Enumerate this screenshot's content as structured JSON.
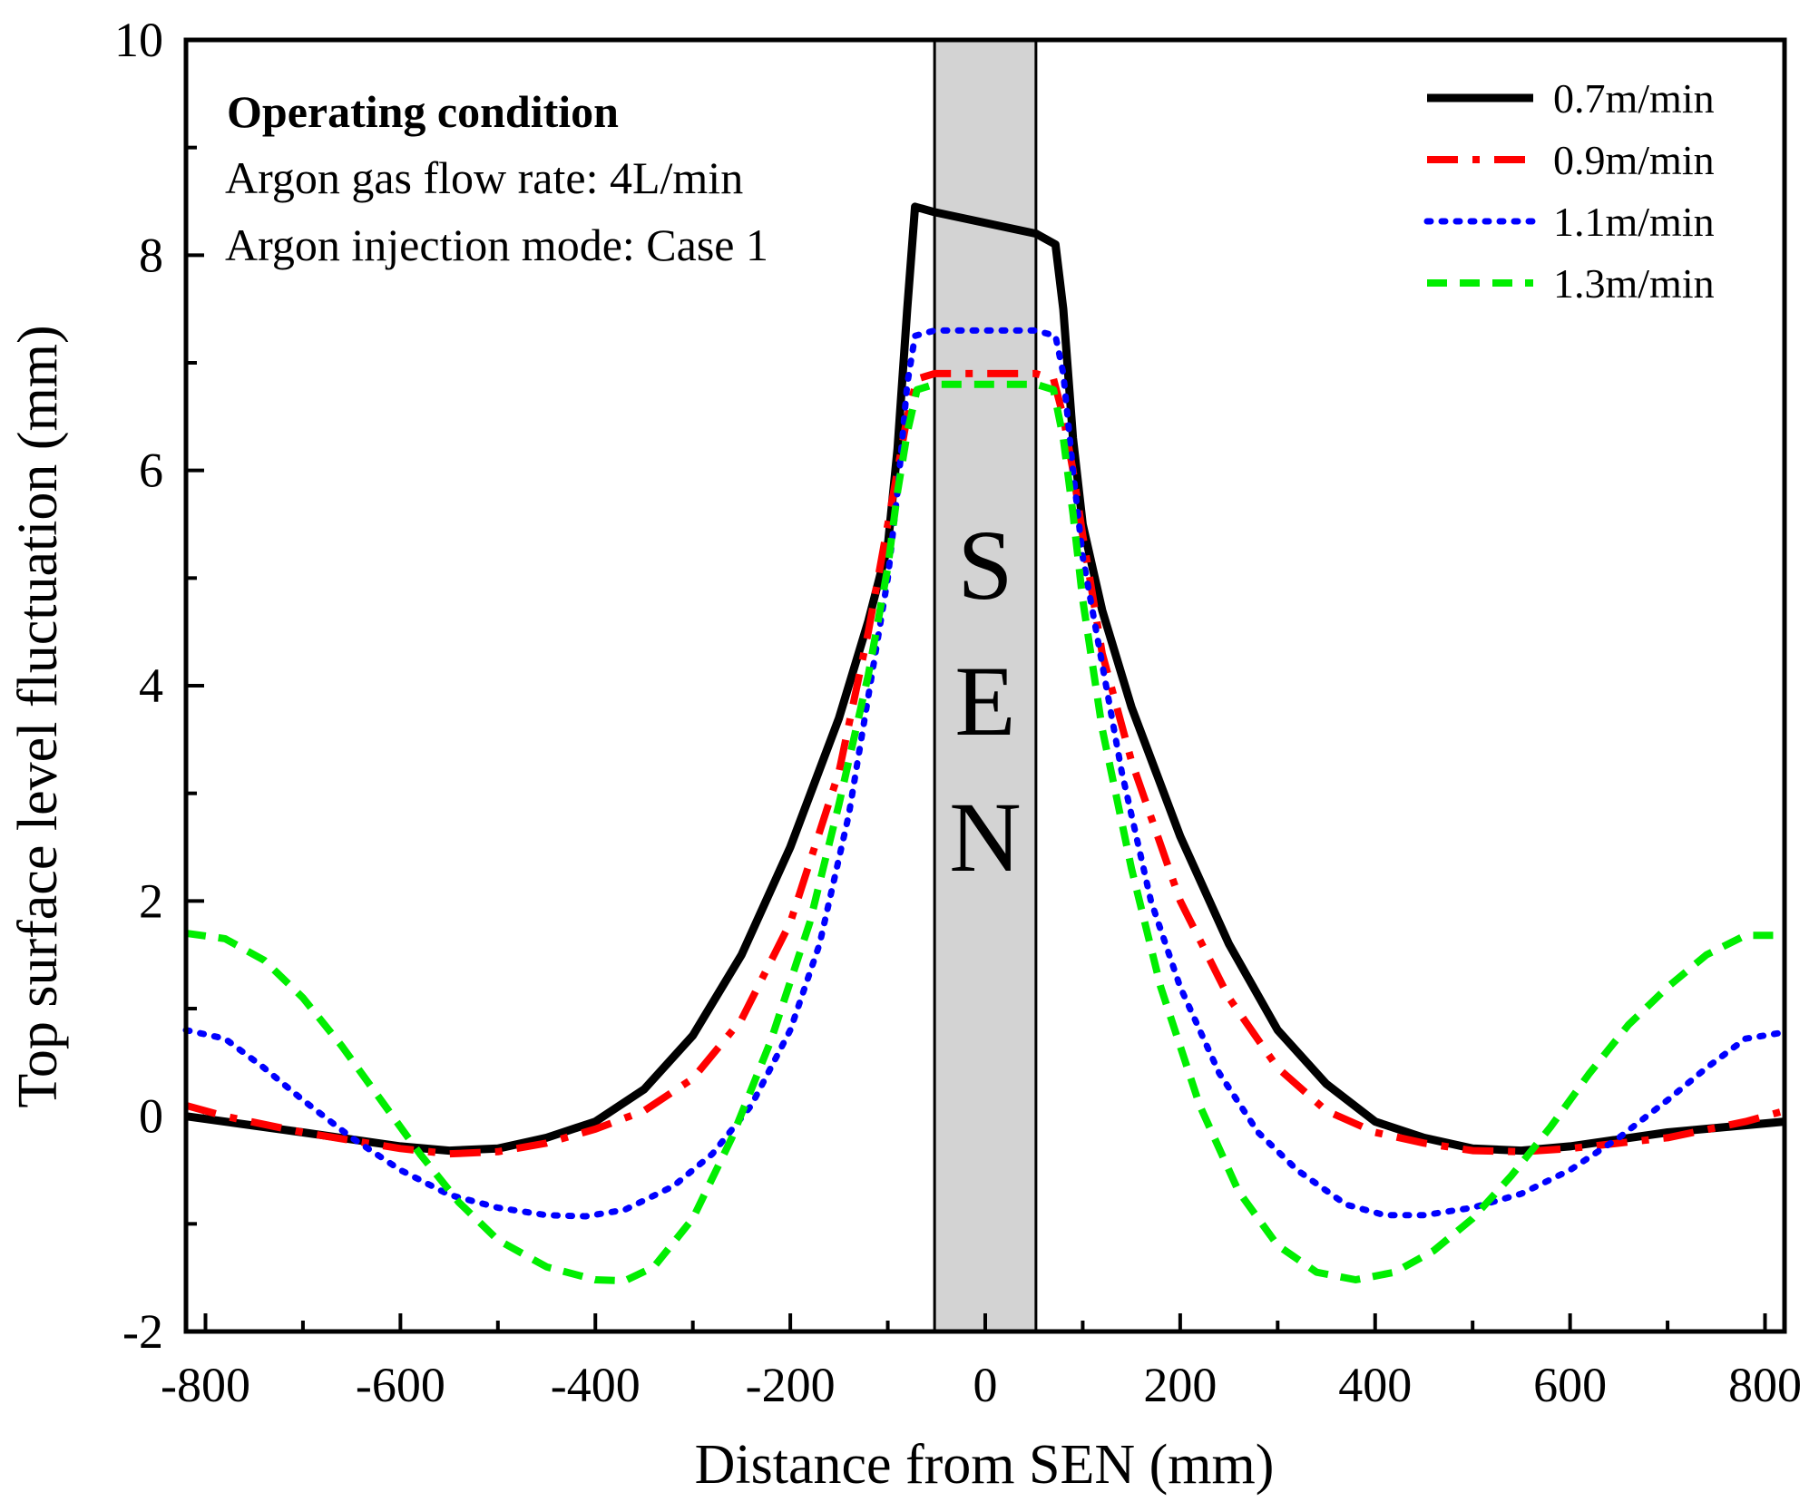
{
  "chart_data": {
    "type": "line",
    "xlabel": "Distance from SEN (mm)",
    "ylabel": "Top surface level fluctuation (mm)",
    "xlim": [
      -820,
      820
    ],
    "ylim": [
      -2,
      10
    ],
    "xticks": [
      -800,
      -600,
      -400,
      -200,
      0,
      200,
      400,
      600,
      800
    ],
    "yticks": [
      -2,
      0,
      2,
      4,
      6,
      8,
      10
    ],
    "sen_region": {
      "x": [
        -52,
        52
      ],
      "letters": [
        "S",
        "E",
        "N"
      ],
      "fill": "#d3d3d3"
    },
    "annotation": {
      "title": "Operating condition",
      "lines": [
        "Argon gas flow rate: 4L/min",
        "Argon injection mode: Case 1"
      ]
    },
    "legend_position": "top-right",
    "series": [
      {
        "name": "0.7m/min",
        "color": "#000000",
        "dash": "solid",
        "points": [
          [
            -820,
            0.0
          ],
          [
            -700,
            -0.15
          ],
          [
            -600,
            -0.28
          ],
          [
            -550,
            -0.32
          ],
          [
            -500,
            -0.3
          ],
          [
            -450,
            -0.2
          ],
          [
            -400,
            -0.05
          ],
          [
            -350,
            0.25
          ],
          [
            -300,
            0.75
          ],
          [
            -250,
            1.5
          ],
          [
            -200,
            2.5
          ],
          [
            -150,
            3.7
          ],
          [
            -120,
            4.6
          ],
          [
            -100,
            5.3
          ],
          [
            -90,
            6.2
          ],
          [
            -80,
            7.5
          ],
          [
            -72,
            8.45
          ],
          [
            -52,
            8.4
          ],
          [
            52,
            8.2
          ],
          [
            72,
            8.1
          ],
          [
            80,
            7.5
          ],
          [
            90,
            6.3
          ],
          [
            100,
            5.5
          ],
          [
            120,
            4.7
          ],
          [
            150,
            3.8
          ],
          [
            200,
            2.6
          ],
          [
            250,
            1.6
          ],
          [
            300,
            0.8
          ],
          [
            350,
            0.3
          ],
          [
            400,
            -0.05
          ],
          [
            450,
            -0.2
          ],
          [
            500,
            -0.3
          ],
          [
            550,
            -0.32
          ],
          [
            600,
            -0.28
          ],
          [
            700,
            -0.15
          ],
          [
            820,
            -0.05
          ]
        ]
      },
      {
        "name": "0.9m/min",
        "color": "#ff0000",
        "dash": "dashdot",
        "points": [
          [
            -820,
            0.1
          ],
          [
            -780,
            0.0
          ],
          [
            -700,
            -0.15
          ],
          [
            -600,
            -0.3
          ],
          [
            -550,
            -0.35
          ],
          [
            -500,
            -0.33
          ],
          [
            -450,
            -0.25
          ],
          [
            -400,
            -0.12
          ],
          [
            -350,
            0.05
          ],
          [
            -300,
            0.35
          ],
          [
            -250,
            0.9
          ],
          [
            -200,
            1.8
          ],
          [
            -150,
            3.2
          ],
          [
            -120,
            4.5
          ],
          [
            -100,
            5.5
          ],
          [
            -90,
            6.0
          ],
          [
            -80,
            6.5
          ],
          [
            -70,
            6.85
          ],
          [
            -52,
            6.9
          ],
          [
            52,
            6.9
          ],
          [
            70,
            6.85
          ],
          [
            80,
            6.5
          ],
          [
            90,
            6.0
          ],
          [
            100,
            5.4
          ],
          [
            120,
            4.3
          ],
          [
            150,
            3.3
          ],
          [
            200,
            2.0
          ],
          [
            250,
            1.1
          ],
          [
            300,
            0.45
          ],
          [
            350,
            0.05
          ],
          [
            400,
            -0.15
          ],
          [
            450,
            -0.25
          ],
          [
            500,
            -0.32
          ],
          [
            550,
            -0.33
          ],
          [
            600,
            -0.3
          ],
          [
            700,
            -0.2
          ],
          [
            780,
            -0.05
          ],
          [
            820,
            0.05
          ]
        ]
      },
      {
        "name": "1.1m/min",
        "color": "#0000ff",
        "dash": "dotted",
        "points": [
          [
            -820,
            0.8
          ],
          [
            -780,
            0.72
          ],
          [
            -740,
            0.45
          ],
          [
            -700,
            0.15
          ],
          [
            -650,
            -0.2
          ],
          [
            -600,
            -0.5
          ],
          [
            -550,
            -0.73
          ],
          [
            -500,
            -0.85
          ],
          [
            -450,
            -0.92
          ],
          [
            -410,
            -0.93
          ],
          [
            -370,
            -0.87
          ],
          [
            -320,
            -0.65
          ],
          [
            -280,
            -0.35
          ],
          [
            -240,
            0.1
          ],
          [
            -200,
            0.8
          ],
          [
            -170,
            1.6
          ],
          [
            -140,
            2.8
          ],
          [
            -120,
            3.9
          ],
          [
            -100,
            5.0
          ],
          [
            -90,
            5.8
          ],
          [
            -80,
            6.8
          ],
          [
            -72,
            7.25
          ],
          [
            -52,
            7.3
          ],
          [
            52,
            7.3
          ],
          [
            72,
            7.25
          ],
          [
            80,
            6.9
          ],
          [
            90,
            6.0
          ],
          [
            100,
            5.2
          ],
          [
            120,
            4.2
          ],
          [
            140,
            3.2
          ],
          [
            170,
            2.0
          ],
          [
            200,
            1.2
          ],
          [
            240,
            0.4
          ],
          [
            280,
            -0.15
          ],
          [
            320,
            -0.5
          ],
          [
            370,
            -0.82
          ],
          [
            410,
            -0.92
          ],
          [
            450,
            -0.92
          ],
          [
            500,
            -0.85
          ],
          [
            550,
            -0.72
          ],
          [
            600,
            -0.5
          ],
          [
            650,
            -0.2
          ],
          [
            700,
            0.15
          ],
          [
            740,
            0.45
          ],
          [
            780,
            0.72
          ],
          [
            820,
            0.78
          ]
        ]
      },
      {
        "name": "1.3m/min",
        "color": "#00ee00",
        "dash": "dashed",
        "points": [
          [
            -820,
            1.7
          ],
          [
            -780,
            1.65
          ],
          [
            -740,
            1.45
          ],
          [
            -700,
            1.1
          ],
          [
            -660,
            0.65
          ],
          [
            -620,
            0.15
          ],
          [
            -580,
            -0.35
          ],
          [
            -540,
            -0.8
          ],
          [
            -500,
            -1.15
          ],
          [
            -450,
            -1.4
          ],
          [
            -400,
            -1.52
          ],
          [
            -370,
            -1.53
          ],
          [
            -340,
            -1.4
          ],
          [
            -300,
            -0.95
          ],
          [
            -260,
            -0.2
          ],
          [
            -220,
            0.7
          ],
          [
            -180,
            1.8
          ],
          [
            -150,
            2.9
          ],
          [
            -120,
            4.1
          ],
          [
            -100,
            5.1
          ],
          [
            -90,
            5.8
          ],
          [
            -80,
            6.35
          ],
          [
            -70,
            6.75
          ],
          [
            -52,
            6.8
          ],
          [
            52,
            6.8
          ],
          [
            70,
            6.75
          ],
          [
            80,
            6.3
          ],
          [
            90,
            5.6
          ],
          [
            100,
            4.8
          ],
          [
            120,
            3.6
          ],
          [
            150,
            2.3
          ],
          [
            180,
            1.2
          ],
          [
            220,
            0.1
          ],
          [
            260,
            -0.7
          ],
          [
            300,
            -1.2
          ],
          [
            340,
            -1.45
          ],
          [
            380,
            -1.52
          ],
          [
            420,
            -1.45
          ],
          [
            460,
            -1.25
          ],
          [
            500,
            -0.95
          ],
          [
            540,
            -0.55
          ],
          [
            580,
            -0.1
          ],
          [
            620,
            0.4
          ],
          [
            660,
            0.85
          ],
          [
            700,
            1.2
          ],
          [
            740,
            1.5
          ],
          [
            780,
            1.68
          ],
          [
            820,
            1.68
          ]
        ]
      }
    ]
  }
}
